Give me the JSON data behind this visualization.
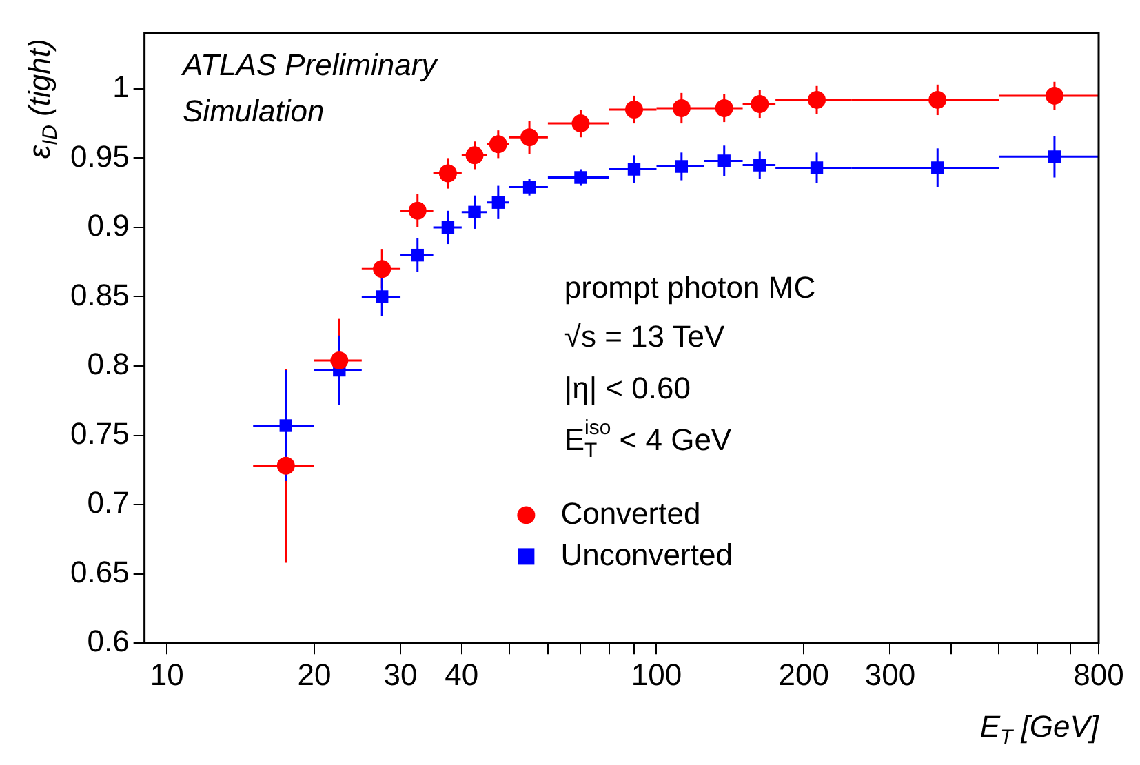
{
  "chart_data": {
    "type": "scatter",
    "xlabel": "E$_{T}$ [GeV]",
    "ylabel": "ε$_{ID}$ (tight)",
    "annotations": [
      "ATLAS Preliminary",
      "Simulation",
      "prompt photon MC",
      "√s = 13 TeV",
      "|η| < 0.60",
      "E$_{T}$$^{iso}$ < 4 GeV"
    ],
    "x": [
      17.5,
      22.5,
      27.5,
      32.5,
      37.5,
      42.5,
      47.5,
      55,
      70,
      90,
      112.5,
      137.5,
      162.5,
      212.5,
      375,
      650
    ],
    "series": [
      {
        "name": "Converted",
        "color": "#ff0000",
        "marker": "circle",
        "xerrors": [
          2.5,
          2.5,
          2.5,
          2.5,
          2.5,
          2.5,
          2.5,
          5,
          10,
          10,
          12.5,
          12.5,
          12.5,
          37.5,
          125,
          150
        ],
        "values": [
          0.728,
          0.804,
          0.87,
          0.912,
          0.939,
          0.952,
          0.96,
          0.965,
          0.975,
          0.985,
          0.986,
          0.986,
          0.989,
          0.992,
          0.992,
          0.995
        ],
        "errors": [
          0.07,
          0.03,
          0.014,
          0.012,
          0.011,
          0.01,
          0.01,
          0.012,
          0.01,
          0.01,
          0.011,
          0.01,
          0.01,
          0.01,
          0.011,
          0.01
        ]
      },
      {
        "name": "Unconverted",
        "color": "#0000ff",
        "marker": "square",
        "xerrors": [
          2.5,
          2.5,
          2.5,
          2.5,
          2.5,
          2.5,
          2.5,
          5,
          10,
          10,
          12.5,
          12.5,
          12.5,
          37.5,
          125,
          150
        ],
        "values": [
          0.757,
          0.797,
          0.85,
          0.88,
          0.9,
          0.911,
          0.918,
          0.929,
          0.936,
          0.942,
          0.944,
          0.948,
          0.945,
          0.943,
          0.943,
          0.951
        ],
        "errors": [
          0.04,
          0.025,
          0.014,
          0.012,
          0.012,
          0.012,
          0.012,
          0.006,
          0.006,
          0.01,
          0.01,
          0.011,
          0.01,
          0.011,
          0.014,
          0.015
        ]
      }
    ],
    "log": "x",
    "xlim": [
      9,
      800
    ],
    "xticks": [
      10,
      20,
      30,
      40,
      {
        "value": 50,
        "label": null
      },
      {
        "value": 60,
        "label": null
      },
      {
        "value": 70,
        "label": null
      },
      {
        "value": 80,
        "label": null
      },
      {
        "value": 90,
        "label": null
      },
      100,
      200,
      300,
      {
        "value": 400,
        "label": null
      },
      {
        "value": 500,
        "label": null
      },
      {
        "value": 600,
        "label": null
      },
      {
        "value": 700,
        "label": null
      },
      800
    ],
    "ylim": [
      0.6,
      1.04
    ],
    "yticks": [
      0.6,
      0.65,
      0.7,
      0.75,
      0.8,
      0.85,
      0.9,
      0.95,
      1
    ],
    "legend": "center"
  }
}
